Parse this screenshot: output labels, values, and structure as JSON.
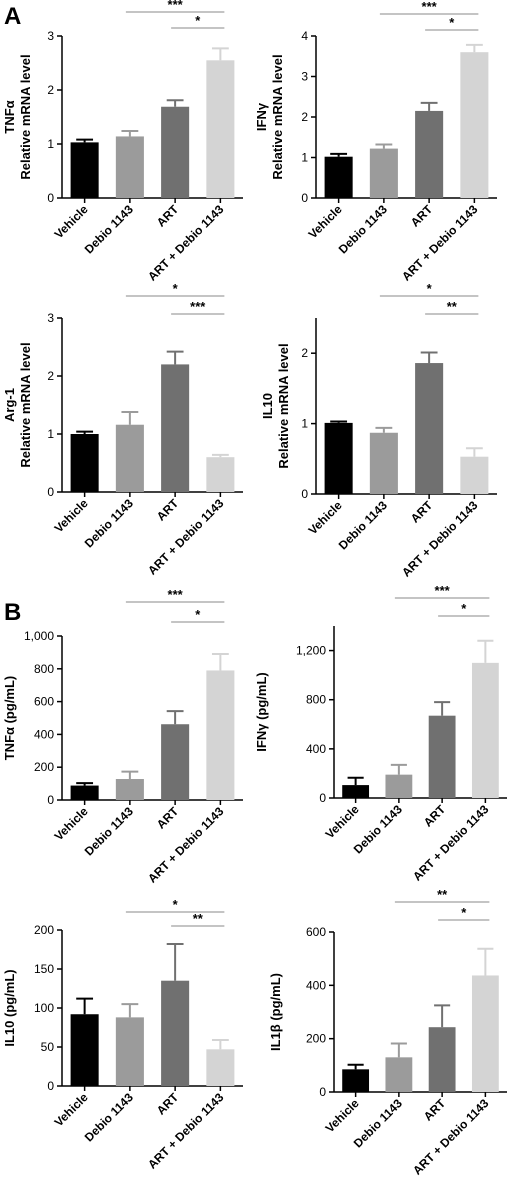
{
  "panels": [
    {
      "letter": "A"
    },
    {
      "letter": "B"
    }
  ],
  "group_colors": [
    "#000000",
    "#9b9b9b",
    "#707070",
    "#d4d4d4"
  ],
  "chart_data": [
    {
      "type": "bar",
      "categories": [
        "Vehicle",
        "Debio 1143",
        "ART",
        "ART + Debio 1143"
      ],
      "values": [
        1.03,
        1.14,
        1.69,
        2.55
      ],
      "errors": [
        0.05,
        0.1,
        0.12,
        0.22
      ],
      "ylabel_lines": [
        "TNFα",
        "Relative mRNA level"
      ],
      "ylim": [
        0,
        3
      ],
      "yticks": [
        0,
        1,
        2,
        3
      ],
      "ytick_labels": [
        "0",
        "1",
        "2",
        "3"
      ],
      "significance": [
        {
          "from": 1,
          "to": 3,
          "label": "***"
        },
        {
          "from": 2,
          "to": 3,
          "label": "*"
        }
      ]
    },
    {
      "type": "bar",
      "categories": [
        "Vehicle",
        "Debio 1143",
        "ART",
        "ART + Debio 1143"
      ],
      "values": [
        1.02,
        1.22,
        2.15,
        3.6
      ],
      "errors": [
        0.07,
        0.1,
        0.2,
        0.18
      ],
      "ylabel_lines": [
        "IFNγ",
        "Relative mRNA level"
      ],
      "ylim": [
        0,
        4
      ],
      "yticks": [
        0,
        1,
        2,
        3,
        4
      ],
      "ytick_labels": [
        "0",
        "1",
        "2",
        "3",
        "4"
      ],
      "significance": [
        {
          "from": 1,
          "to": 3,
          "label": "***"
        },
        {
          "from": 2,
          "to": 3,
          "label": "*"
        }
      ]
    },
    {
      "type": "bar",
      "categories": [
        "Vehicle",
        "Debio 1143",
        "ART",
        "ART + Debio 1143"
      ],
      "values": [
        1.0,
        1.16,
        2.2,
        0.6
      ],
      "errors": [
        0.04,
        0.22,
        0.22,
        0.04
      ],
      "ylabel_lines": [
        "Arg-1",
        "Relative mRNA level"
      ],
      "ylim": [
        0,
        3
      ],
      "yticks": [
        0,
        1,
        2,
        3
      ],
      "ytick_labels": [
        "0",
        "1",
        "2",
        "3"
      ],
      "significance": [
        {
          "from": 1,
          "to": 3,
          "label": "*"
        },
        {
          "from": 2,
          "to": 3,
          "label": "***"
        }
      ]
    },
    {
      "type": "bar",
      "categories": [
        "Vehicle",
        "Debio 1143",
        "ART",
        "ART + Debio 1143"
      ],
      "values": [
        1.01,
        0.87,
        1.86,
        0.53
      ],
      "errors": [
        0.02,
        0.07,
        0.15,
        0.12
      ],
      "ylabel_lines": [
        "IL10",
        "Relative mRNA level"
      ],
      "ylim": [
        0,
        2.5
      ],
      "yticks": [
        0,
        1,
        2
      ],
      "ytick_labels": [
        "0",
        "1",
        "2"
      ],
      "significance": [
        {
          "from": 1,
          "to": 3,
          "label": "*"
        },
        {
          "from": 2,
          "to": 3,
          "label": "**"
        }
      ]
    },
    {
      "type": "bar",
      "categories": [
        "Vehicle",
        "Debio 1143",
        "ART",
        "ART + Debio 1143"
      ],
      "values": [
        88,
        128,
        462,
        790
      ],
      "errors": [
        15,
        45,
        80,
        100
      ],
      "ylabel_lines": [
        "TNFα (pg/mL)"
      ],
      "ylim": [
        0,
        1000
      ],
      "yticks": [
        0,
        200,
        400,
        600,
        800,
        1000
      ],
      "ytick_labels": [
        "0",
        "200",
        "400",
        "600",
        "800",
        "1,000"
      ],
      "significance": [
        {
          "from": 1,
          "to": 3,
          "label": "***"
        },
        {
          "from": 2,
          "to": 3,
          "label": "*"
        }
      ]
    },
    {
      "type": "bar",
      "categories": [
        "Vehicle",
        "Debio 1143",
        "ART",
        "ART + Debio 1143"
      ],
      "values": [
        105,
        190,
        670,
        1100
      ],
      "errors": [
        60,
        80,
        110,
        180
      ],
      "ylabel_lines": [
        "IFNγ (pg/mL)"
      ],
      "ylim": [
        0,
        1400
      ],
      "yticks": [
        0,
        400,
        800,
        1200
      ],
      "ytick_labels": [
        "0",
        "400",
        "800",
        "1,200"
      ],
      "significance": [
        {
          "from": 1,
          "to": 3,
          "label": "***"
        },
        {
          "from": 2,
          "to": 3,
          "label": "*"
        }
      ]
    },
    {
      "type": "bar",
      "categories": [
        "Vehicle",
        "Debio 1143",
        "ART",
        "ART + Debio 1143"
      ],
      "values": [
        92,
        88,
        135,
        47
      ],
      "errors": [
        20,
        17,
        47,
        12
      ],
      "ylabel_lines": [
        "IL10 (pg/mL)"
      ],
      "ylim": [
        0,
        200
      ],
      "yticks": [
        0,
        50,
        100,
        150,
        200
      ],
      "ytick_labels": [
        "0",
        "50",
        "100",
        "150",
        "200"
      ],
      "significance": [
        {
          "from": 1,
          "to": 3,
          "label": "*"
        },
        {
          "from": 2,
          "to": 3,
          "label": "**"
        }
      ]
    },
    {
      "type": "bar",
      "categories": [
        "Vehicle",
        "Debio 1143",
        "ART",
        "ART + Debio 1143"
      ],
      "values": [
        85,
        130,
        243,
        437
      ],
      "errors": [
        17,
        52,
        82,
        100
      ],
      "ylabel_lines": [
        "IL1β (pg/mL)"
      ],
      "ylim": [
        0,
        600
      ],
      "yticks": [
        0,
        200,
        400,
        600
      ],
      "ytick_labels": [
        "0",
        "200",
        "400",
        "600"
      ],
      "significance": [
        {
          "from": 1,
          "to": 3,
          "label": "**"
        },
        {
          "from": 2,
          "to": 3,
          "label": "*"
        }
      ]
    }
  ]
}
